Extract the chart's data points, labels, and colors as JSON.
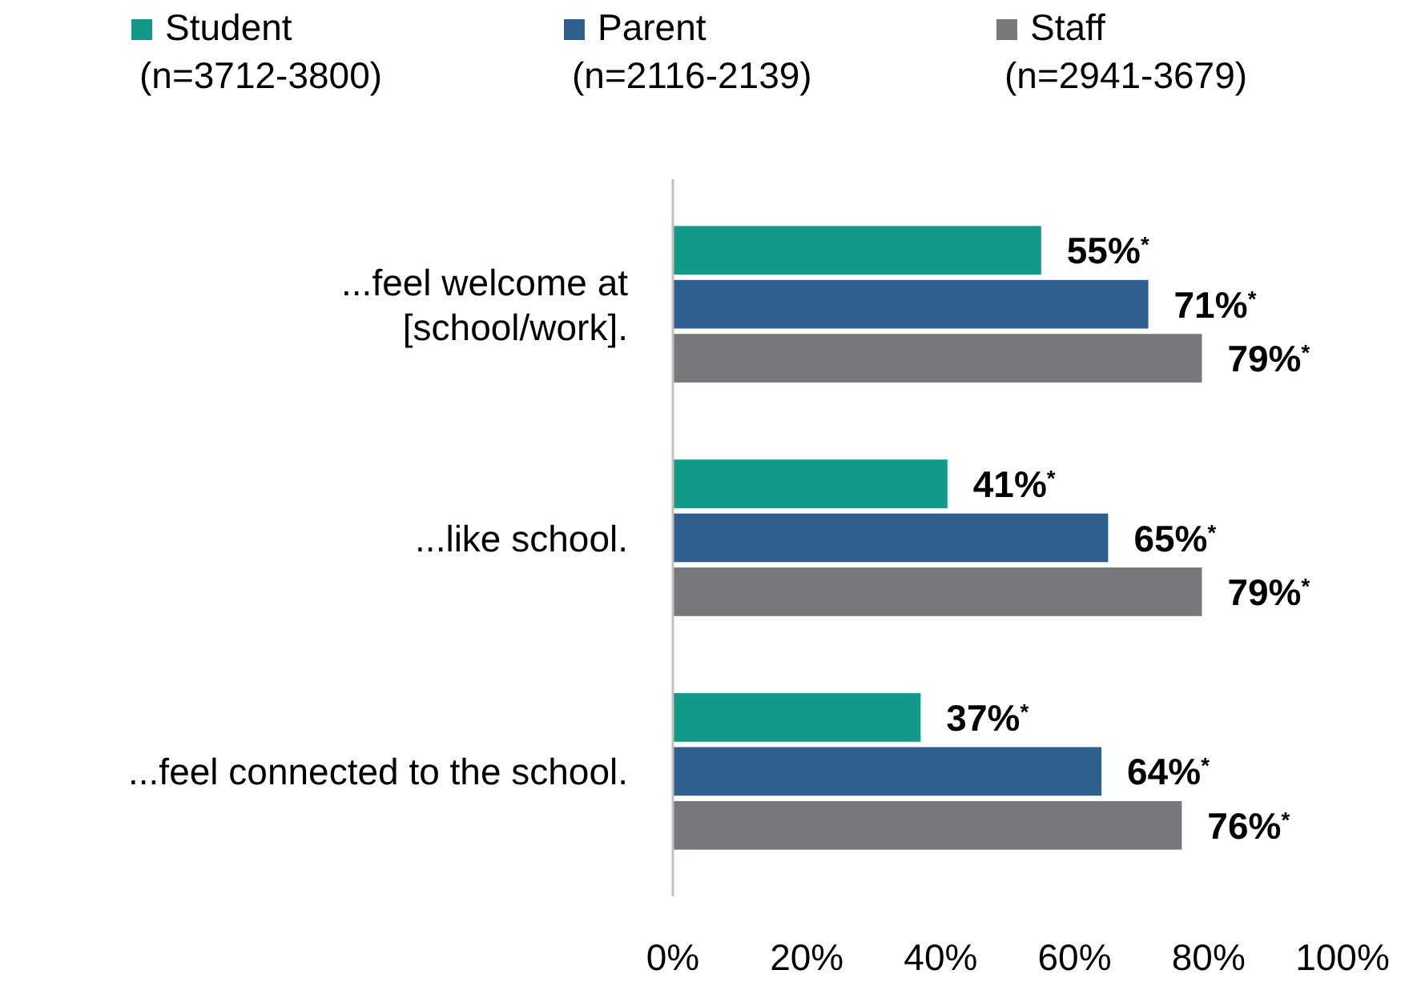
{
  "chart_data": {
    "type": "bar",
    "orientation": "horizontal",
    "categories": [
      "...feel welcome at\n[school/work].",
      "...like school.",
      "...feel connected to the school."
    ],
    "series": [
      {
        "name": "Student\n(n=3712-3800)",
        "color": "#12998a",
        "values": [
          55,
          41,
          37
        ],
        "value_labels": [
          "55%$^{*}$",
          "41%$^{*}$",
          "37%$^{*}$"
        ]
      },
      {
        "name": "Parent\n(n=2116-2139)",
        "color": "#2e5f8f",
        "values": [
          71,
          65,
          64
        ],
        "value_labels": [
          "71%$^{*}$",
          "65%$^{*}$",
          "64%$^{*}$"
        ]
      },
      {
        "name": "Staff\n(n=2941-3679)",
        "color": "#77787b",
        "values": [
          79,
          79,
          76
        ],
        "value_labels": [
          "79%$^{*}$",
          "79%$^{*}$",
          "76%$^{*}$"
        ]
      }
    ],
    "xlim": [
      0,
      100
    ],
    "xticks": [
      {
        "value": 0,
        "label": "0%"
      },
      {
        "value": 20,
        "label": "20%"
      },
      {
        "value": 40,
        "label": "40%"
      },
      {
        "value": 60,
        "label": "60%"
      },
      {
        "value": 80,
        "label": "80%"
      },
      {
        "value": 100,
        "label": "100%"
      }
    ],
    "legend": "top",
    "grid": false
  }
}
